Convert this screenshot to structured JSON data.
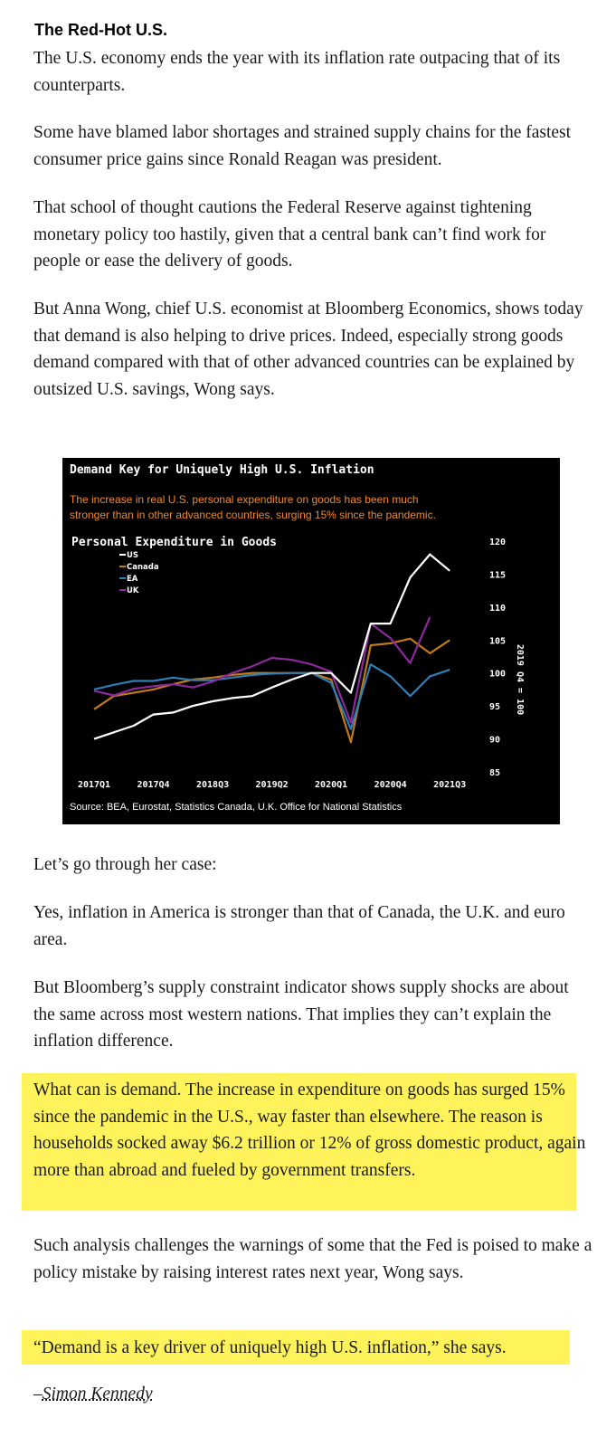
{
  "article": {
    "heading": "The Red-Hot U.S.",
    "p1": "The U.S. economy ends the year with its inflation rate outpacing that of its counterparts.",
    "p2": "Some have blamed labor shortages and strained supply chains for the fastest consumer price gains since Ronald Reagan was president.",
    "p3": "That school of thought cautions the Federal Reserve against tightening monetary policy too hastily, given that a central bank can’t find work for people or ease the delivery of goods.",
    "p4": "But Anna Wong, chief U.S. economist at Bloomberg Economics, shows today that demand is also helping to drive prices. Indeed, especially strong goods demand compared with that of other advanced countries can be explained by outsized U.S. savings, Wong says.",
    "p5": "Let’s go through her case:",
    "p6": "Yes, inflation in America is stronger than that of Canada, the U.K. and euro area.",
    "p7": "But Bloomberg’s supply constraint indicator shows supply shocks are about the same across most western nations. That implies they can’t explain the inflation difference.",
    "p8": "What can is demand. The increase in expenditure on goods has surged 15% since the pandemic in the U.S., way faster than elsewhere. The reason is households socked away $6.2 trillion or 12% of gross domestic product, again more than abroad and fueled by government transfers.",
    "p9": "Such analysis challenges the warnings of some that the Fed is poised to make a policy mistake by raising interest rates next year, Wong says.",
    "p10": "“Demand is a key driver of uniquely high U.S. inflation,” she says.",
    "sig_dash": "–",
    "sig_name": "Simon Kennedy"
  },
  "colors": {
    "highlight": "#fff35c",
    "chart_bg": "#000000",
    "chart_subtitle": "#f08a24"
  },
  "chart_data": {
    "type": "line",
    "title": "Demand Key for Uniquely High U.S. Inflation",
    "subtitle": "The increase in real U.S. personal expenditure on goods has been much stronger than in other advanced countries, surging 15% since the pandemic.",
    "panel_title": "Personal Expenditure in Goods",
    "ylabel": "2019 Q4 = 100",
    "source": "Source: BEA, Eurostat, Statistics Canada, U.K. Office for National Statistics",
    "ylim": [
      85,
      120
    ],
    "yticks": [
      85,
      90,
      95,
      100,
      105,
      110,
      115,
      120
    ],
    "x_tick_labels": [
      "2017Q1",
      "2017Q4",
      "2018Q3",
      "2019Q2",
      "2020Q1",
      "2020Q4",
      "2021Q3"
    ],
    "x": [
      "2017Q1",
      "2017Q2",
      "2017Q3",
      "2017Q4",
      "2018Q1",
      "2018Q2",
      "2018Q3",
      "2018Q4",
      "2019Q1",
      "2019Q2",
      "2019Q3",
      "2019Q4",
      "2020Q1",
      "2020Q2",
      "2020Q3",
      "2020Q4",
      "2021Q1",
      "2021Q2",
      "2021Q3",
      "2021Q4"
    ],
    "legend_position": "top-left",
    "series": [
      {
        "name": "US",
        "color": "#ffffff",
        "values": [
          90,
          91,
          92,
          93.7,
          94,
          95,
          95.7,
          96.2,
          96.5,
          97.8,
          99,
          100,
          100,
          97,
          107.5,
          107.5,
          114.5,
          118,
          115.5,
          null
        ]
      },
      {
        "name": "Canada",
        "color": "#c07a18",
        "values": [
          94.5,
          96.5,
          97,
          97.5,
          98.3,
          99,
          99.3,
          99.7,
          100,
          100,
          100,
          100,
          99,
          89.5,
          104.2,
          104.5,
          105.2,
          103,
          105,
          null
        ]
      },
      {
        "name": "EA",
        "color": "#2e7fb8",
        "values": [
          97.5,
          98.2,
          98.8,
          98.8,
          99.3,
          98.9,
          98.9,
          99.3,
          99.7,
          99.9,
          100,
          100,
          98.5,
          91.5,
          101.3,
          99.5,
          96.5,
          99.5,
          100.5,
          null
        ]
      },
      {
        "name": "UK",
        "color": "#8b2a9a",
        "values": [
          97.3,
          96.6,
          97.6,
          98,
          98.3,
          97.8,
          98.7,
          100,
          101,
          102.3,
          102,
          101.3,
          100.2,
          92.5,
          107.5,
          105.3,
          101.5,
          108.5,
          null,
          null
        ]
      }
    ]
  }
}
